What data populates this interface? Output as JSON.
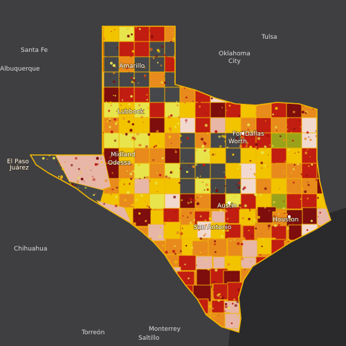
{
  "map": {
    "background_color": "#3f3f42",
    "ocean_color": "#2a2a2c",
    "border_color": "#f2b600",
    "palette": {
      "dark": "#45474a",
      "light": "#f2d9cf",
      "pink": "#e7b6a6",
      "lemon": "#e8e44c",
      "yellow": "#f2c400",
      "orange": "#e88a1c",
      "red": "#c21d11",
      "maroon": "#7e0d0d",
      "olive": "#9aa21a"
    }
  },
  "labels": {
    "outside": {
      "santa_fe": "Santa Fe",
      "albuquerque": "Albuquerque",
      "tulsa": "Tulsa",
      "oklahoma_city": "Oklahoma",
      "oklahoma_city_2": "City",
      "chihuahua": "Chihuahua",
      "torreon": "Torreón",
      "monterrey": "Monterrey",
      "saltillo": "Saltillo"
    },
    "texas": {
      "amarillo": "Amarillo",
      "lubbock": "Lubbock",
      "midland": "Midland",
      "odessa": "Odessa",
      "el_paso": "El Paso",
      "juarez": "Juárez",
      "fort_worth_1": "Fort",
      "fort_worth_2": "Worth",
      "dallas": "Dallas",
      "austin": "Austin",
      "san_antonio": "San Antonio",
      "houston": "Houston"
    }
  }
}
